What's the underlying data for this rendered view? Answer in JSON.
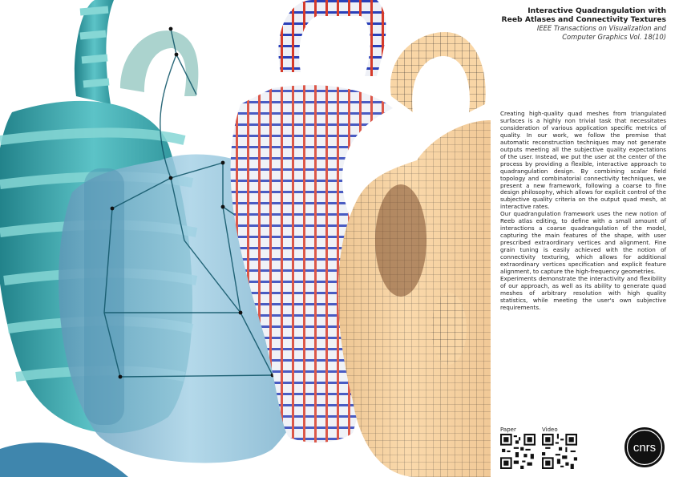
{
  "header": {
    "title_line1": "Interactive Quadrangulation with",
    "title_line2": "Reeb Atlases and Connectivity Textures",
    "journal_line1": "IEEE Transactions on Visualization and",
    "journal_line2": "Computer Graphics Vol. 18(10)"
  },
  "abstract": {
    "p1": "Creating high-quality quad meshes from triangulated surfaces is a highly non trivial task that necessitates consideration of various application specific metrics of quality. In our work, we follow the premise that automatic reconstruction techniques may not generate outputs meeting all the subjective quality expectations of the user. Instead, we put the user at the center of the process by providing a flexible, interactive approach to quadrangulation design. By combining scalar field topology and combinatorial connectivity techniques, we present a new framework, following a coarse to fine design philosophy, which allows for explicit control of the subjective quality criteria on the output quad mesh, at interactive rates.",
    "p2": "Our quadrangulation framework uses the new notion of Reeb atlas editing, to define with a small amount of interactions a coarse quadrangulation of the model, capturing the main features of the shape, with user prescribed extraordinary vertices and alignment. Fine grain tuning is easily achieved with the notion of connectivity texturing, which allows for additional extraordinary vertices specification and explicit feature alignment, to capture the high-frequency geometries.",
    "p3": "Experiments demonstrate the interactivity and flexibility of our approach, as well as its ability to generate quad meshes of arbitrary resolution with high quality statistics, while meeting the user's own subjective requirements."
  },
  "links": {
    "paper_label": "Paper",
    "video_label": "Video"
  },
  "logo": {
    "text": "cnrs"
  },
  "colors": {
    "teal": "#2a8f96",
    "striped_red": "#d63a2a",
    "striped_blue": "#2a3fb8",
    "quad_tan": "#f5cf9e"
  }
}
